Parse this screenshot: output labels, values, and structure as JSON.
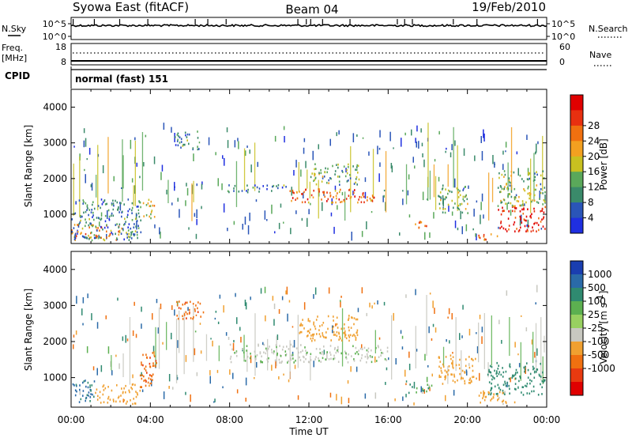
{
  "header": {
    "station": "Syowa East (fitACF)",
    "beam": "Beam 04",
    "date": "19/Feb/2010"
  },
  "nsky_panel": {
    "left_label": "N.Sky",
    "left_ticks": [
      "10^5",
      "10^0"
    ],
    "right_label": "N.Search",
    "right_ticks": [
      "10^5",
      "10^0"
    ]
  },
  "freq_panel": {
    "left_label_1": "Freq.",
    "left_label_2": "[MHz]",
    "left_ticks": [
      "18",
      "8"
    ],
    "right_label": "Nave",
    "right_ticks": [
      "60",
      "0"
    ]
  },
  "cpid": {
    "label": "CPID",
    "value": "normal (fast) 151"
  },
  "x_axis": {
    "ticks": [
      "00:00",
      "04:00",
      "08:00",
      "12:00",
      "16:00",
      "20:00",
      "00:00"
    ],
    "label": "Time UT"
  },
  "y_axis": {
    "label": "Slant Range [km]",
    "ticks": [
      "1000",
      "2000",
      "3000",
      "4000"
    ]
  },
  "power_colorbar": {
    "label": "Power [dB]",
    "ticks": [
      "4",
      "8",
      "12",
      "16",
      "20",
      "24",
      "28"
    ],
    "colors": [
      "#1f2fe0",
      "#2a55b8",
      "#3a8a6a",
      "#5aa85a",
      "#c8c020",
      "#f2a020",
      "#f07010",
      "#e83010",
      "#e00000"
    ]
  },
  "velocity_colorbar": {
    "label": "Velocity [m s",
    "label_sup": "-1",
    "label_end": "]",
    "ticks": [
      "1000",
      "500",
      "100",
      "25",
      "-25",
      "-100",
      "-500",
      "-1000"
    ],
    "colors": [
      "#1a3eb0",
      "#2a6aa8",
      "#2f8a70",
      "#5cb050",
      "#98d060",
      "#c8c8c0",
      "#f0a030",
      "#f07010",
      "#e83a10",
      "#e00000"
    ]
  },
  "chart_data": [
    {
      "type": "heatmap",
      "panel": "power",
      "x_range_hours": [
        0,
        24
      ],
      "y_range_km": [
        180,
        4500
      ],
      "ylabel": "Slant Range [km]",
      "xlabel": "Time UT",
      "colorbar_label": "Power [dB]",
      "value_units": "dB",
      "regions": [
        {
          "t0": 0.0,
          "t1": 2.6,
          "r0": 250,
          "r1": 700,
          "value": 20
        },
        {
          "t0": 0.0,
          "t1": 3.5,
          "r0": 250,
          "r1": 1400,
          "value": 8
        },
        {
          "t0": 3.6,
          "t1": 4.2,
          "r0": 800,
          "r1": 1500,
          "value": 16
        },
        {
          "t0": 5.2,
          "t1": 6.5,
          "r0": 2800,
          "r1": 3300,
          "value": 8
        },
        {
          "t0": 7.8,
          "t1": 11.0,
          "r0": 1600,
          "r1": 1800,
          "value": 8
        },
        {
          "t0": 11.0,
          "t1": 15.5,
          "r0": 1300,
          "r1": 1700,
          "value": 22
        },
        {
          "t0": 12.0,
          "t1": 14.5,
          "r0": 1800,
          "r1": 2400,
          "value": 12
        },
        {
          "t0": 17.3,
          "t1": 18.2,
          "r0": 600,
          "r1": 800,
          "value": 22
        },
        {
          "t0": 18.5,
          "t1": 20.0,
          "r0": 1000,
          "r1": 1800,
          "value": 12
        },
        {
          "t0": 20.5,
          "t1": 21.5,
          "r0": 250,
          "r1": 450,
          "value": 22
        },
        {
          "t0": 21.5,
          "t1": 23.9,
          "r0": 500,
          "r1": 1200,
          "value": 28
        },
        {
          "t0": 21.5,
          "t1": 23.9,
          "r0": 1200,
          "r1": 2200,
          "value": 12
        }
      ]
    },
    {
      "type": "heatmap",
      "panel": "velocity",
      "x_range_hours": [
        0,
        24
      ],
      "y_range_km": [
        180,
        4500
      ],
      "ylabel": "Slant Range [km]",
      "xlabel": "Time UT",
      "colorbar_label": "Velocity [m s-1]",
      "value_units": "m/s",
      "regions": [
        {
          "t0": 0.0,
          "t1": 1.2,
          "r0": 250,
          "r1": 900,
          "value": 700
        },
        {
          "t0": 1.2,
          "t1": 3.5,
          "r0": 250,
          "r1": 800,
          "value": -200
        },
        {
          "t0": 3.4,
          "t1": 4.3,
          "r0": 700,
          "r1": 1700,
          "value": -800
        },
        {
          "t0": 5.3,
          "t1": 6.7,
          "r0": 2600,
          "r1": 3100,
          "value": -800
        },
        {
          "t0": 8.0,
          "t1": 16.0,
          "r0": 1400,
          "r1": 1900,
          "value": 0
        },
        {
          "t0": 11.5,
          "t1": 14.5,
          "r0": 2000,
          "r1": 2700,
          "value": -300
        },
        {
          "t0": 17.0,
          "t1": 18.3,
          "r0": 550,
          "r1": 800,
          "value": 80
        },
        {
          "t0": 18.5,
          "t1": 20.5,
          "r0": 800,
          "r1": 1600,
          "value": -200
        },
        {
          "t0": 21.0,
          "t1": 23.9,
          "r0": 500,
          "r1": 1400,
          "value": 300
        },
        {
          "t0": 20.5,
          "t1": 22.5,
          "r0": 250,
          "r1": 600,
          "value": -150
        }
      ]
    }
  ]
}
